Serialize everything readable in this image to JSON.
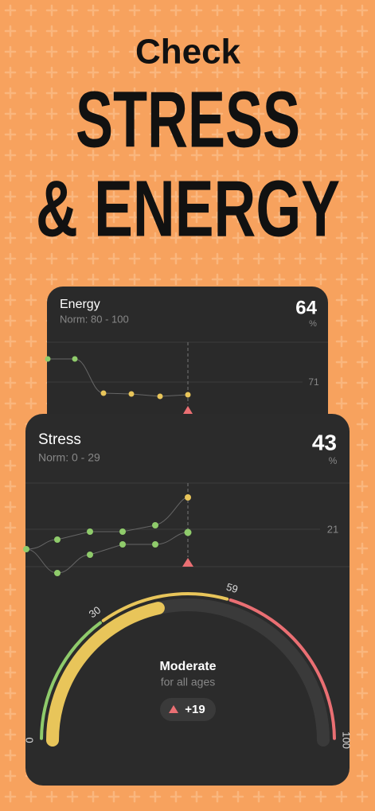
{
  "header": {
    "line1": "Check",
    "line2": "STRESS",
    "line3": "& ENERGY"
  },
  "energy_card": {
    "title": "Energy",
    "norm": "Norm: 80 - 100",
    "value": 64,
    "unit": "%",
    "reference": 71
  },
  "stress_card": {
    "title": "Stress",
    "norm": "Norm: 0 - 29",
    "value": 43,
    "unit": "%",
    "reference": 21,
    "gauge": {
      "ticks": [
        0,
        30,
        59,
        100
      ],
      "status": "Moderate",
      "subtitle": "for all ages",
      "change": "+19"
    }
  }
}
